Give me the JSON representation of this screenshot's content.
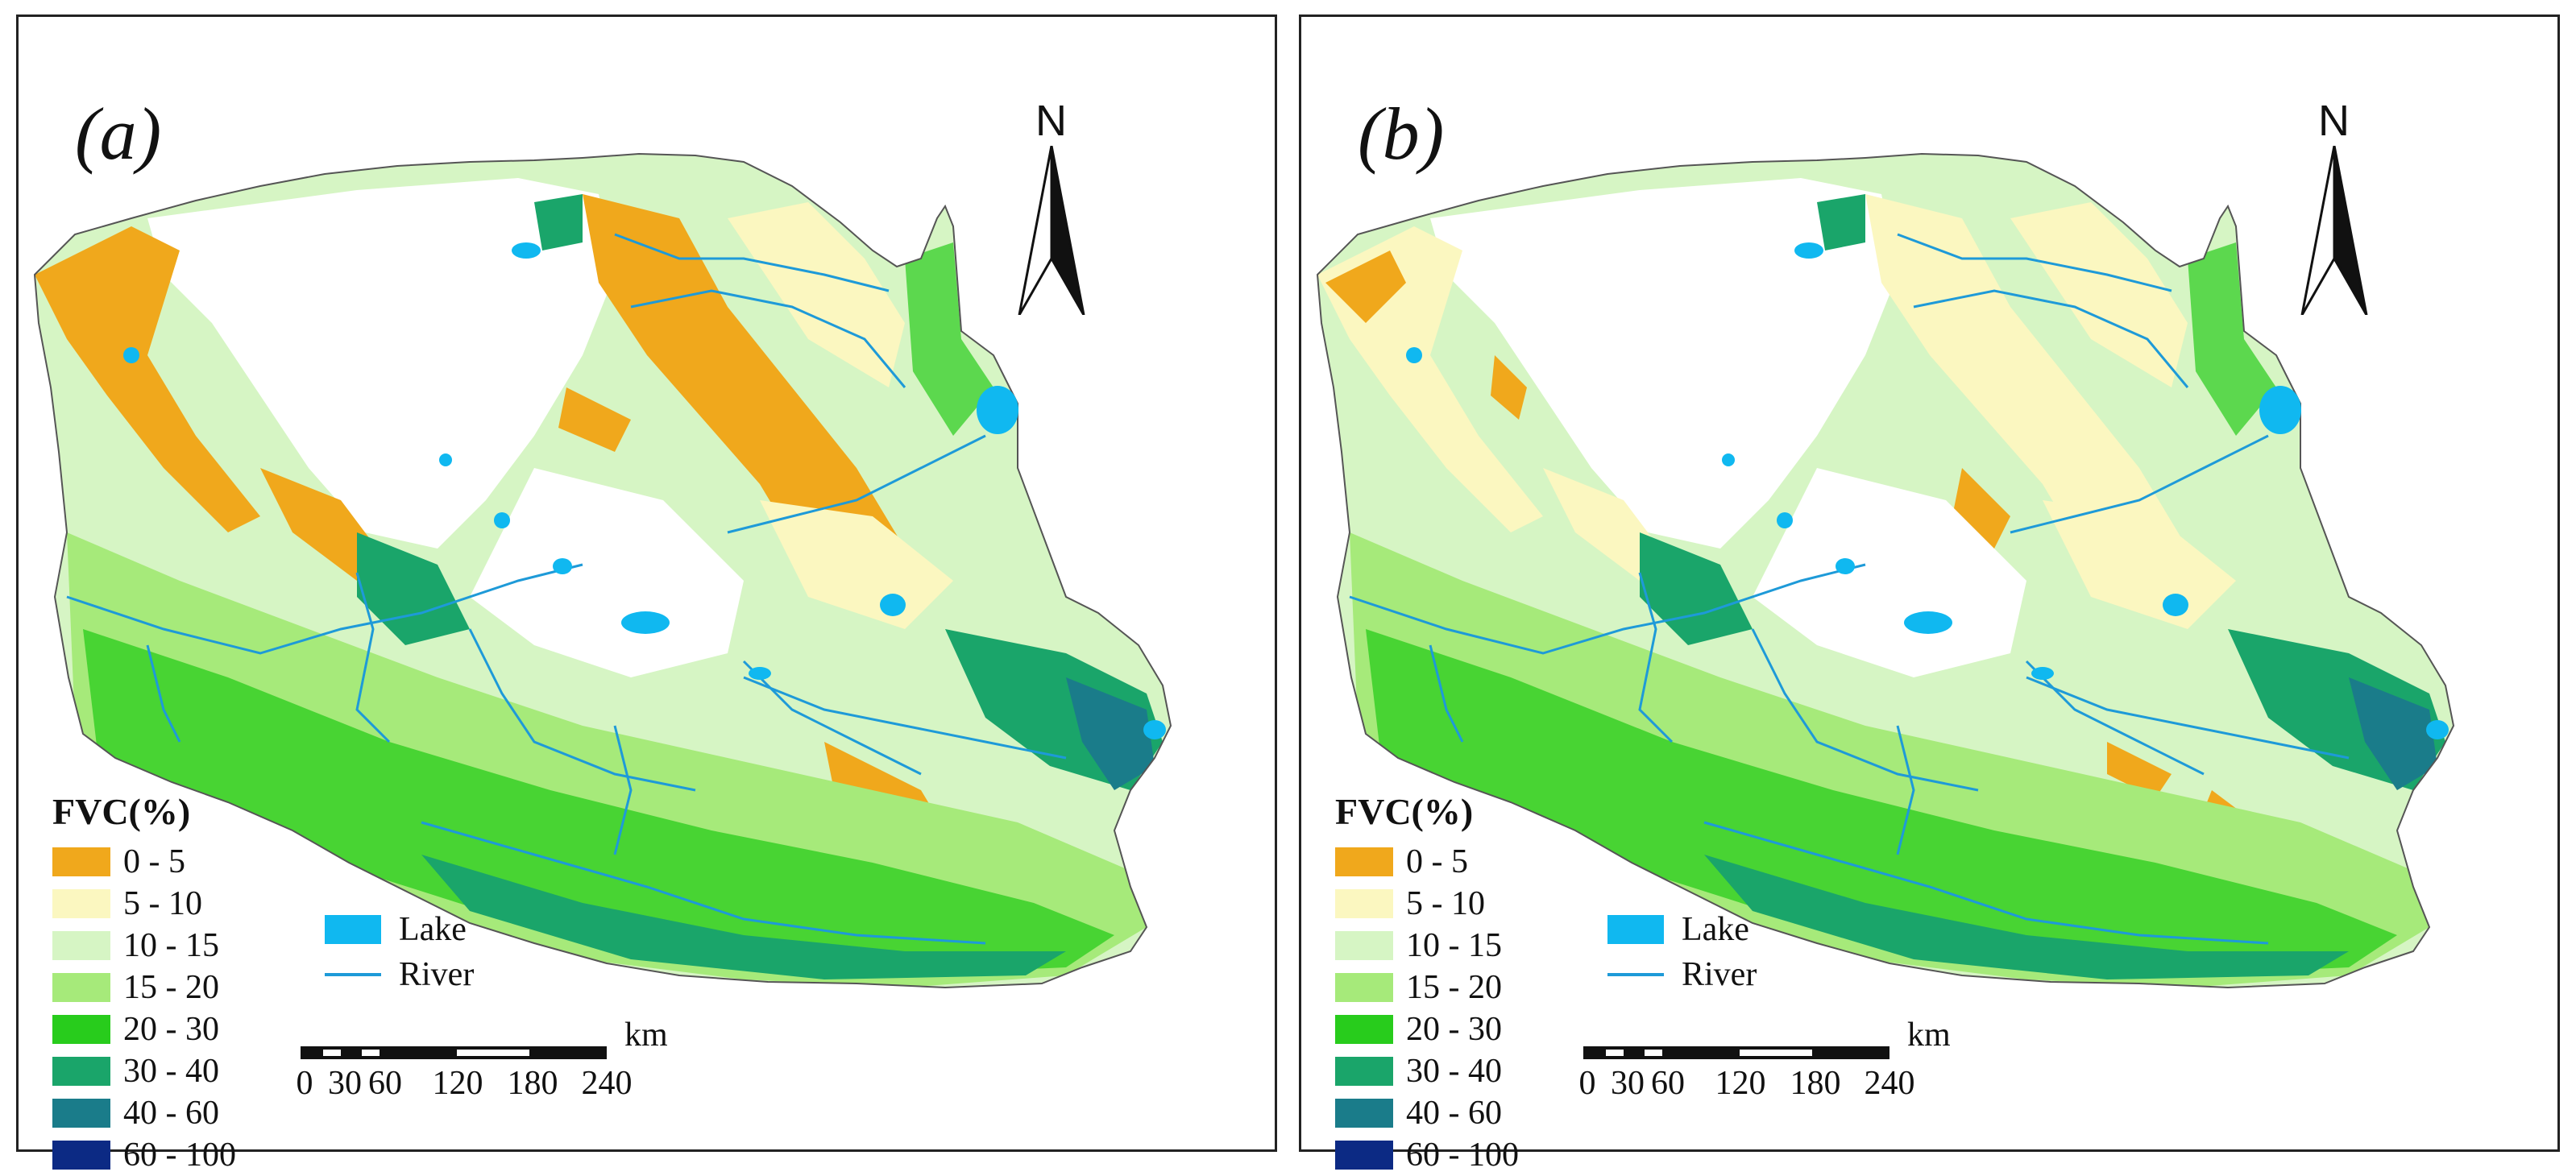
{
  "panels": [
    {
      "id": "a",
      "label": "(a)"
    },
    {
      "id": "b",
      "label": "(b)"
    }
  ],
  "north_label": "N",
  "legend": {
    "title": "FVC(%)",
    "classes": [
      {
        "label": "0 - 5",
        "color": "#f0a81c"
      },
      {
        "label": "5 - 10",
        "color": "#fbf7c0"
      },
      {
        "label": "10 - 15",
        "color": "#d6f5c4"
      },
      {
        "label": "15 - 20",
        "color": "#a6ea7a"
      },
      {
        "label": "20 - 30",
        "color": "#28cc1c"
      },
      {
        "label": "30 - 40",
        "color": "#1aa56a"
      },
      {
        "label": "40 - 60",
        "color": "#1a7c8a"
      },
      {
        "label": "60 - 100",
        "color": "#0c2a84"
      }
    ]
  },
  "water_legend": {
    "lake": {
      "label": "Lake",
      "color": "#10b8f0"
    },
    "river": {
      "label": "River",
      "color": "#1e9ad8"
    }
  },
  "scale_bar": {
    "unit": "km",
    "ticks": [
      "0",
      "30",
      "60",
      "120",
      "180",
      "240"
    ]
  }
}
